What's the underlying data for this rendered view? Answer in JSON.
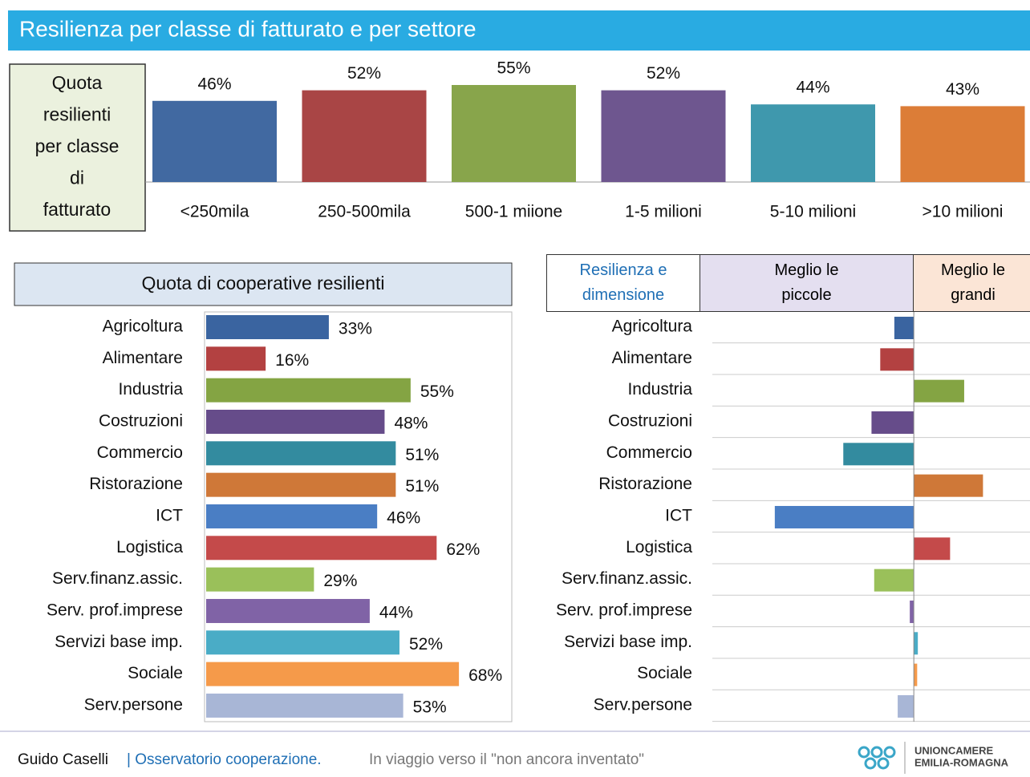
{
  "header": {
    "title": "Resilienza per classe di fatturato e per settore"
  },
  "chart_data": [
    {
      "type": "bar",
      "orientation": "vertical",
      "title_lines": [
        "Quota",
        "resilienti",
        "per classe",
        "di",
        "fatturato"
      ],
      "categories": [
        "<250mila",
        "250-500mila",
        "500-1 miione",
        "1-5 milioni",
        "5-10 milioni",
        ">10 milioni"
      ],
      "values": [
        46,
        52,
        55,
        52,
        44,
        43
      ],
      "value_labels": [
        "46%",
        "52%",
        "55%",
        "52%",
        "44%",
        "43%"
      ],
      "colors": [
        "#4169a1",
        "#a94545",
        "#88a54b",
        "#6e568f",
        "#3f98ad",
        "#dc7d37"
      ],
      "ylim": [
        0,
        60
      ]
    },
    {
      "type": "bar",
      "orientation": "horizontal",
      "title": "Quota di cooperative resilienti",
      "categories": [
        "Agricoltura",
        "Alimentare",
        "Industria",
        "Costruzioni",
        "Commercio",
        "Ristorazione",
        "ICT",
        "Logistica",
        "Serv.finanz.assic.",
        "Serv. prof.imprese",
        "Servizi base imp.",
        "Sociale",
        "Serv.persone"
      ],
      "values": [
        33,
        16,
        55,
        48,
        51,
        51,
        46,
        62,
        29,
        44,
        52,
        68,
        53
      ],
      "value_labels": [
        "33%",
        "16%",
        "55%",
        "48%",
        "51%",
        "51%",
        "46%",
        "62%",
        "29%",
        "44%",
        "52%",
        "68%",
        "53%"
      ],
      "colors": [
        "#3a64a0",
        "#b34141",
        "#84a443",
        "#664c8a",
        "#338b9f",
        "#cf7838",
        "#4a7ec4",
        "#c44a4a",
        "#9ac05a",
        "#8063a6",
        "#4aacc6",
        "#f59a4a",
        "#a8b6d6"
      ],
      "xlim": [
        0,
        82
      ]
    },
    {
      "type": "bar",
      "orientation": "horizontal",
      "title": "Resilienza e dimensione",
      "left_label": "Meglio le piccole",
      "right_label": "Meglio le grandi",
      "categories": [
        "Agricoltura",
        "Alimentare",
        "Industria",
        "Costruzioni",
        "Commercio",
        "Ristorazione",
        "ICT",
        "Logistica",
        "Serv.finanz.assic.",
        "Serv. prof.imprese",
        "Servizi base imp.",
        "Sociale",
        "Serv.persone"
      ],
      "values": [
        -2.9,
        -5,
        7.5,
        -6.3,
        -10.5,
        10.3,
        -20.7,
        5.4,
        -5.9,
        -0.6,
        0.6,
        0.5,
        -2.4
      ],
      "colors": [
        "#3a64a0",
        "#b34141",
        "#84a443",
        "#664c8a",
        "#338b9f",
        "#cf7838",
        "#4a7ec4",
        "#c44a4a",
        "#9ac05a",
        "#8063a6",
        "#4aacc6",
        "#f59a4a",
        "#a8b6d6"
      ],
      "xlim": [
        -30,
        17.3
      ]
    }
  ],
  "footer": {
    "author": "Guido Caselli",
    "source": "| Osservatorio cooperazione.",
    "tagline": "In viaggio verso il \"non ancora inventato\"",
    "logo": [
      "UNIONCAMERE",
      "EMILIA-ROMAGNA"
    ]
  }
}
